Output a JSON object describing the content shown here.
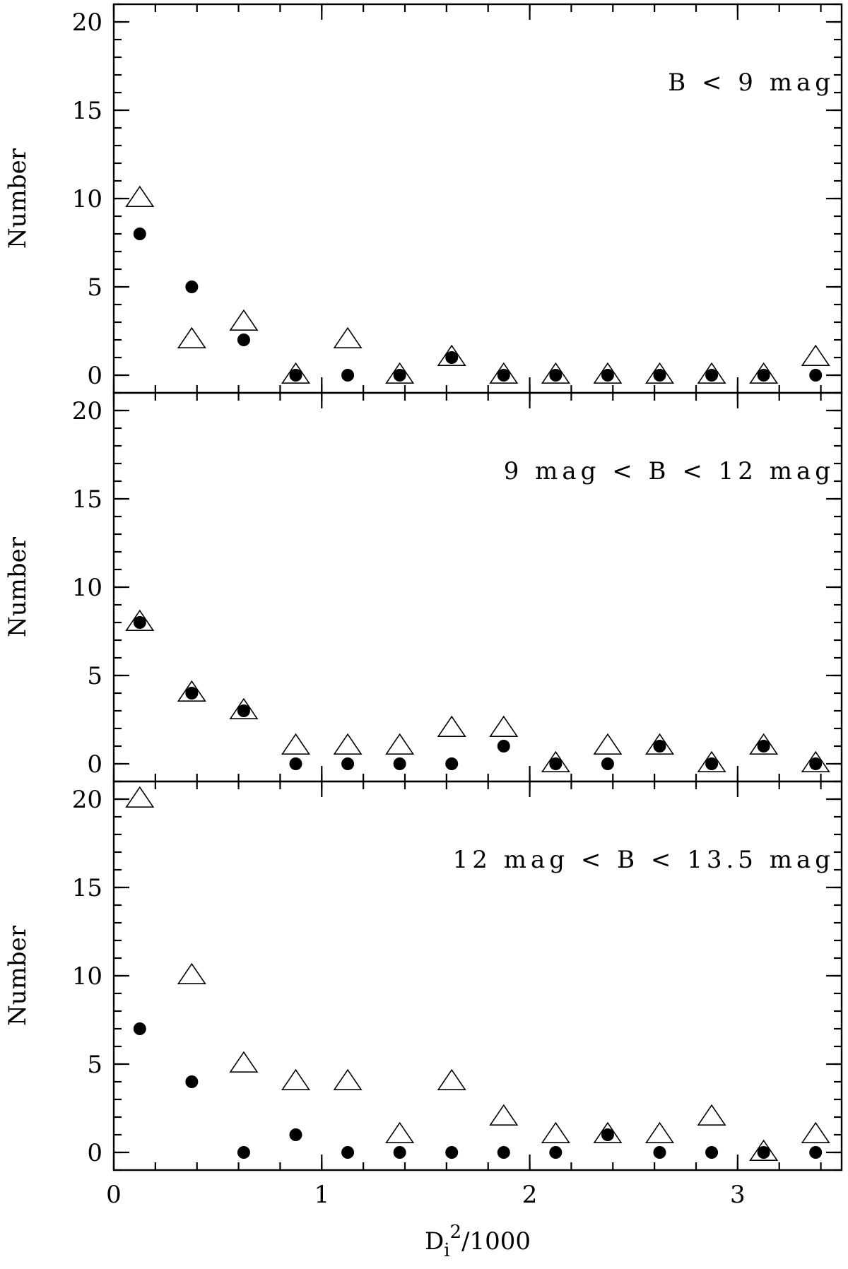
{
  "chart_data": [
    {
      "type": "scatter",
      "annotation": "B < 9 mag",
      "ylabel": "Number",
      "x": [
        0.125,
        0.375,
        0.625,
        0.875,
        1.125,
        1.375,
        1.625,
        1.875,
        2.125,
        2.375,
        2.625,
        2.875,
        3.125,
        3.375
      ],
      "series": [
        {
          "marker": "triangle",
          "color": "#000000",
          "values": [
            10,
            2,
            3,
            0,
            2,
            0,
            1,
            0,
            0,
            0,
            0,
            0,
            0,
            1
          ]
        },
        {
          "marker": "circle",
          "color": "#000000",
          "values": [
            8,
            5,
            2,
            0,
            0,
            0,
            1,
            0,
            0,
            0,
            0,
            0,
            0,
            0
          ]
        }
      ],
      "xlim": [
        0,
        3.5
      ],
      "xticks": [
        0,
        1,
        2,
        3
      ],
      "xminor_step": 0.2,
      "xtick_labels": false,
      "ylim": [
        -1,
        21
      ],
      "yticks": [
        0,
        5,
        10,
        15,
        20
      ],
      "yminor_step": 1
    },
    {
      "type": "scatter",
      "annotation": "9 mag < B < 12 mag",
      "ylabel": "Number",
      "x": [
        0.125,
        0.375,
        0.625,
        0.875,
        1.125,
        1.375,
        1.625,
        1.875,
        2.125,
        2.375,
        2.625,
        2.875,
        3.125,
        3.375
      ],
      "series": [
        {
          "marker": "triangle",
          "color": "#000000",
          "values": [
            8,
            4,
            3,
            1,
            1,
            1,
            2,
            2,
            0,
            1,
            1,
            0,
            1,
            0
          ]
        },
        {
          "marker": "circle",
          "color": "#000000",
          "values": [
            8,
            4,
            3,
            0,
            0,
            0,
            0,
            1,
            0,
            0,
            1,
            0,
            1,
            0
          ]
        }
      ],
      "xlim": [
        0,
        3.5
      ],
      "xticks": [
        0,
        1,
        2,
        3
      ],
      "xminor_step": 0.2,
      "xtick_labels": false,
      "ylim": [
        -1,
        21
      ],
      "yticks": [
        0,
        5,
        10,
        15,
        20
      ],
      "yminor_step": 1
    },
    {
      "type": "scatter",
      "annotation": "12 mag < B < 13.5 mag",
      "ylabel": "Number",
      "xlabel": {
        "base": "D",
        "sub": "i",
        "sup": "2",
        "rest": "/1000"
      },
      "x": [
        0.125,
        0.375,
        0.625,
        0.875,
        1.125,
        1.375,
        1.625,
        1.875,
        2.125,
        2.375,
        2.625,
        2.875,
        3.125,
        3.375
      ],
      "series": [
        {
          "marker": "triangle",
          "color": "#000000",
          "values": [
            20,
            10,
            5,
            4,
            4,
            1,
            4,
            2,
            1,
            1,
            1,
            2,
            0,
            1
          ]
        },
        {
          "marker": "circle",
          "color": "#000000",
          "values": [
            7,
            4,
            0,
            1,
            0,
            0,
            0,
            0,
            0,
            1,
            0,
            0,
            0,
            0
          ]
        }
      ],
      "xlim": [
        0,
        3.5
      ],
      "xticks": [
        0,
        1,
        2,
        3
      ],
      "xminor_step": 0.2,
      "xtick_labels": true,
      "ylim": [
        -1,
        21
      ],
      "yticks": [
        0,
        5,
        10,
        15,
        20
      ],
      "yminor_step": 1
    }
  ]
}
